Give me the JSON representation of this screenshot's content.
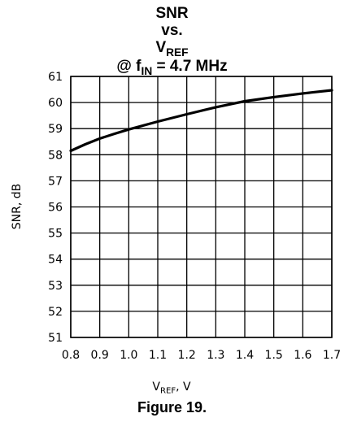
{
  "chart_data": {
    "type": "line",
    "title": {
      "line1": "SNR",
      "line2": "vs.",
      "line3_main": "V",
      "line3_sub": "REF",
      "line4_pre": "@ f",
      "line4_sub": "IN",
      "line4_post": " = 4.7 MHz"
    },
    "xlabel": {
      "main": "V",
      "sub": "REF",
      "unit": ", V"
    },
    "ylabel": "SNR, dB",
    "xlim": [
      0.8,
      1.7
    ],
    "ylim": [
      51,
      61
    ],
    "xticks": [
      "0.8",
      "0.9",
      "1.0",
      "1.1",
      "1.2",
      "1.3",
      "1.4",
      "1.5",
      "1.6",
      "1.7"
    ],
    "yticks": [
      "51",
      "52",
      "53",
      "54",
      "55",
      "56",
      "57",
      "58",
      "59",
      "60",
      "61"
    ],
    "grid": true,
    "series": [
      {
        "x": [
          0.8,
          0.85,
          0.9,
          0.95,
          1.0,
          1.1,
          1.2,
          1.3,
          1.4,
          1.5,
          1.6,
          1.7
        ],
        "y": [
          58.15,
          58.4,
          58.62,
          58.8,
          58.97,
          59.27,
          59.55,
          59.82,
          60.05,
          60.21,
          60.35,
          60.47
        ]
      }
    ]
  },
  "caption": "Figure 19."
}
